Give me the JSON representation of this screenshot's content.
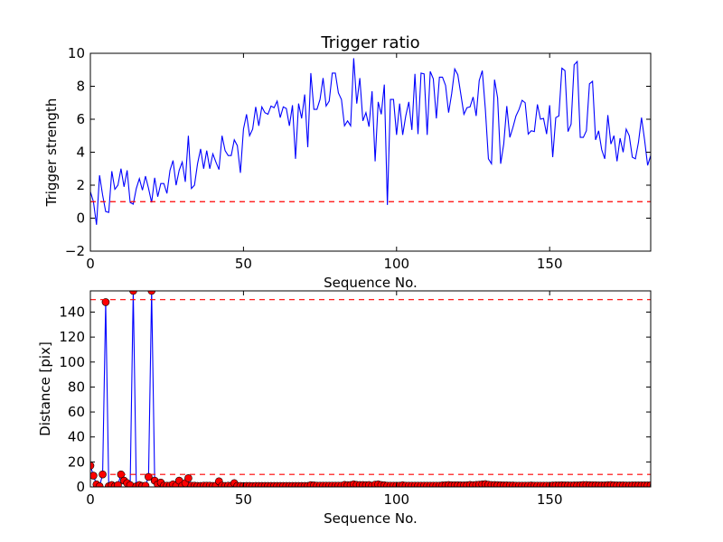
{
  "figure": {
    "title": "Trigger ratio"
  },
  "chart_data": [
    {
      "type": "line",
      "title": "Trigger ratio",
      "xlabel": "Sequence No.",
      "ylabel": "Trigger strength",
      "xlim": [
        0,
        183
      ],
      "ylim": [
        -2,
        10
      ],
      "xticks": [
        0,
        50,
        100,
        150
      ],
      "yticks": [
        -2,
        0,
        2,
        4,
        6,
        8,
        10
      ],
      "grid": false,
      "series": [
        {
          "color": "#0000ff",
          "style": "solid",
          "y": [
            1.6,
            1.0,
            -0.4,
            2.6,
            1.4,
            0.4,
            0.35,
            2.85,
            1.75,
            2.0,
            3.0,
            1.9,
            2.9,
            0.95,
            0.85,
            1.8,
            2.4,
            1.7,
            2.55,
            1.8,
            0.95,
            2.45,
            1.3,
            2.1,
            2.1,
            1.5,
            2.9,
            3.5,
            2.0,
            2.9,
            3.4,
            2.2,
            5.0,
            1.8,
            2.0,
            3.3,
            4.2,
            3.0,
            4.1,
            3.0,
            3.9,
            3.4,
            2.95,
            5.0,
            4.1,
            3.8,
            3.8,
            4.75,
            4.4,
            2.75,
            5.4,
            6.3,
            5.0,
            5.4,
            6.75,
            5.6,
            6.75,
            6.4,
            6.3,
            6.8,
            6.7,
            7.1,
            6.1,
            6.75,
            6.65,
            5.6,
            6.85,
            3.6,
            6.95,
            6.05,
            7.5,
            4.3,
            8.8,
            6.6,
            6.6,
            7.2,
            8.5,
            6.8,
            7.1,
            8.8,
            8.8,
            7.6,
            7.2,
            5.6,
            5.9,
            5.6,
            9.7,
            6.95,
            8.5,
            5.9,
            6.4,
            5.55,
            7.7,
            3.45,
            7.05,
            6.3,
            8.1,
            0.8,
            7.2,
            7.2,
            5.05,
            6.95,
            5.05,
            6.2,
            7.05,
            5.35,
            8.75,
            5.1,
            8.8,
            8.75,
            5.05,
            8.9,
            8.45,
            6.05,
            8.55,
            8.55,
            8.05,
            6.4,
            7.55,
            9.05,
            8.7,
            7.5,
            6.3,
            6.7,
            6.75,
            7.35,
            6.2,
            8.35,
            8.95,
            6.6,
            3.6,
            3.3,
            8.4,
            7.3,
            3.3,
            4.5,
            6.8,
            4.9,
            5.5,
            6.2,
            6.6,
            7.15,
            7.0,
            5.1,
            5.3,
            5.25,
            6.9,
            6.0,
            6.05,
            5.1,
            6.85,
            3.7,
            6.1,
            6.2,
            9.1,
            8.95,
            5.25,
            5.7,
            9.3,
            9.5,
            4.9,
            4.9,
            5.3,
            8.15,
            8.3,
            4.75,
            5.3,
            4.15,
            3.6,
            6.25,
            4.5,
            5.0,
            3.45,
            4.85,
            4.0,
            5.4,
            5.0,
            3.7,
            3.6,
            4.6,
            6.1,
            4.75,
            3.2,
            3.8,
            2.8
          ]
        },
        {
          "color": "#ff0000",
          "style": "dashed",
          "y_constant": 1.0
        }
      ]
    },
    {
      "type": "line",
      "xlabel": "Sequence No.",
      "ylabel": "Distance [pix]",
      "xlim": [
        0,
        183
      ],
      "ylim": [
        0,
        157
      ],
      "xticks": [
        0,
        50,
        100,
        150
      ],
      "yticks": [
        0,
        20,
        40,
        60,
        80,
        100,
        120,
        140
      ],
      "grid": false,
      "series": [
        {
          "color": "#0000ff",
          "style": "solid",
          "marker": "circle",
          "marker_fill": "#ff0000",
          "y": [
            17,
            9,
            2,
            0.5,
            10,
            148,
            0.5,
            1.5,
            0.5,
            1.5,
            10,
            5,
            3,
            1.5,
            157,
            0.5,
            1.5,
            0.8,
            1,
            8,
            157,
            5,
            2,
            3.5,
            1,
            1,
            1,
            2,
            1,
            5,
            1,
            3,
            7,
            1,
            1,
            0.8,
            0.8,
            1,
            1,
            1,
            0.8,
            1,
            4.5,
            1,
            0.8,
            1,
            0.8,
            3,
            0.8,
            0.8,
            0.7,
            0.8,
            0.8,
            0.7,
            0.8,
            0.8,
            0.8,
            0.8,
            0.8,
            0.8,
            0.8,
            0.8,
            0.8,
            0.8,
            0.8,
            0.8,
            0.8,
            0.8,
            0.8,
            0.8,
            0.8,
            0.8,
            1.4,
            1.2,
            1,
            1,
            1,
            1,
            1,
            1,
            1,
            1,
            1,
            1.6,
            1.4,
            1.5,
            2,
            1.6,
            1.5,
            1.5,
            1.4,
            1.5,
            1,
            1.8,
            2,
            1.5,
            1.3,
            1,
            1,
            1,
            1,
            1,
            1.3,
            1,
            1,
            1,
            1,
            1,
            1,
            1,
            1,
            1,
            1,
            1,
            1,
            1.2,
            1.3,
            1.5,
            1.3,
            1.3,
            1.3,
            1.2,
            1.2,
            1.3,
            1.6,
            1.4,
            1.6,
            1.8,
            2,
            2.2,
            1.8,
            1.5,
            1.5,
            1.4,
            1.3,
            1.2,
            1.2,
            1.1,
            1.1,
            1,
            1,
            1,
            1,
            1,
            1.1,
            1,
            1,
            1,
            1,
            1,
            1,
            1.1,
            1.2,
            1.2,
            1.3,
            1.2,
            1.2,
            1.1,
            1.2,
            1.2,
            1.3,
            1.5,
            1.5,
            1.4,
            1.3,
            1.3,
            1.2,
            1.2,
            1.2,
            1.4,
            1.5,
            1.3,
            1.2,
            1.2,
            1.2,
            1.1,
            1.1,
            1.2,
            1.2,
            1.2,
            1.2,
            1.2,
            1.2,
            1.3,
            1.4,
            1.6,
            1.6,
            2
          ]
        },
        {
          "color": "#ff0000",
          "style": "dashed",
          "y_constant": 150
        },
        {
          "color": "#ff0000",
          "style": "dashed",
          "y_constant": 10
        }
      ]
    }
  ]
}
